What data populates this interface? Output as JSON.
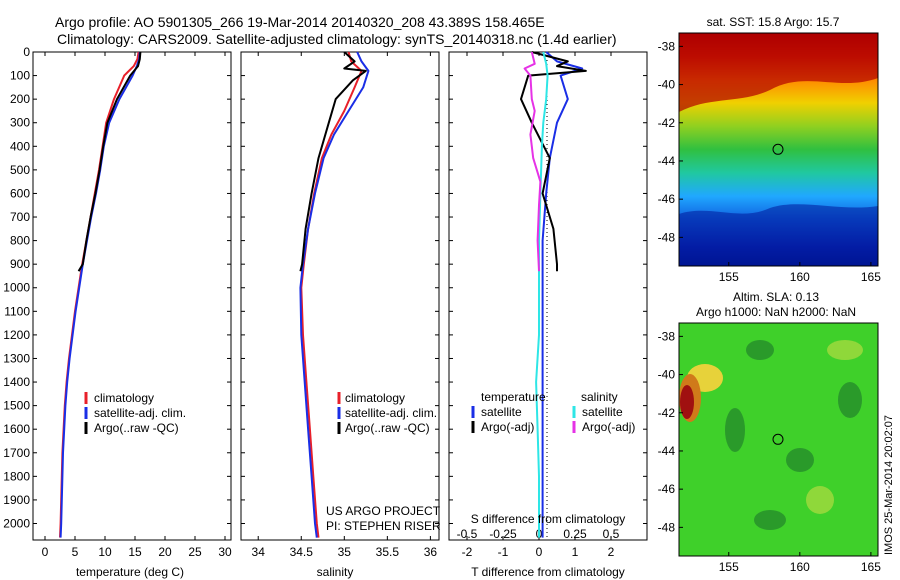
{
  "header": {
    "line1": "Argo profile: AO 5901305_266 19-Mar-2014 20140320_208 43.389S 158.465E",
    "line2": "Climatology: CARS2009. Satellite-adjusted climatology: synTS_20140318.nc (1.4d earlier)"
  },
  "colors": {
    "red": "#e8202a",
    "blue": "#1a2ee6",
    "black": "#000000",
    "cyan": "#2ee6e6",
    "magenta": "#e632e6"
  },
  "chart_data": [
    {
      "type": "line",
      "panel": "temperature",
      "xlabel": "temperature (deg C)",
      "xlim": [
        -2,
        31
      ],
      "xticks": [
        0,
        5,
        10,
        15,
        20,
        25,
        30
      ],
      "ylim": [
        0,
        2070
      ],
      "yticks": [
        0,
        100,
        200,
        300,
        400,
        500,
        600,
        700,
        800,
        900,
        1000,
        1100,
        1200,
        1300,
        1400,
        1500,
        1600,
        1700,
        1800,
        1900,
        2000
      ],
      "legend": [
        "climatology",
        "satellite-adj. clim.",
        "Argo(..raw -QC)"
      ],
      "series": [
        {
          "name": "climatology",
          "color": "red",
          "points": [
            [
              15.6,
              0
            ],
            [
              15.4,
              30
            ],
            [
              14.8,
              60
            ],
            [
              13.2,
              100
            ],
            [
              11.5,
              200
            ],
            [
              10.2,
              300
            ],
            [
              9.6,
              400
            ],
            [
              9.0,
              500
            ],
            [
              8.3,
              600
            ],
            [
              7.6,
              700
            ],
            [
              6.9,
              800
            ],
            [
              6.2,
              900
            ],
            [
              5.6,
              1000
            ],
            [
              5.0,
              1100
            ],
            [
              4.5,
              1200
            ],
            [
              4.0,
              1300
            ],
            [
              3.6,
              1400
            ],
            [
              3.3,
              1500
            ],
            [
              3.1,
              1600
            ],
            [
              2.9,
              1700
            ],
            [
              2.8,
              1800
            ],
            [
              2.7,
              1900
            ],
            [
              2.6,
              2000
            ],
            [
              2.5,
              2060
            ]
          ]
        },
        {
          "name": "satellite-adj. clim.",
          "color": "blue",
          "points": [
            [
              15.8,
              0
            ],
            [
              15.7,
              30
            ],
            [
              15.3,
              60
            ],
            [
              14.6,
              100
            ],
            [
              12.4,
              200
            ],
            [
              10.7,
              300
            ],
            [
              9.8,
              400
            ],
            [
              9.2,
              500
            ],
            [
              8.5,
              600
            ],
            [
              7.7,
              700
            ],
            [
              7.0,
              800
            ],
            [
              6.3,
              900
            ],
            [
              5.7,
              1000
            ],
            [
              5.1,
              1100
            ],
            [
              4.6,
              1200
            ],
            [
              4.1,
              1300
            ],
            [
              3.7,
              1400
            ],
            [
              3.4,
              1500
            ],
            [
              3.2,
              1600
            ],
            [
              3.0,
              1700
            ],
            [
              2.9,
              1800
            ],
            [
              2.8,
              1900
            ],
            [
              2.7,
              2000
            ],
            [
              2.6,
              2060
            ]
          ]
        },
        {
          "name": "Argo(..raw -QC)",
          "color": "black",
          "points": [
            [
              15.9,
              0
            ],
            [
              15.8,
              30
            ],
            [
              15.5,
              60
            ],
            [
              14.2,
              100
            ],
            [
              12.0,
              200
            ],
            [
              10.4,
              300
            ],
            [
              9.7,
              400
            ],
            [
              9.1,
              500
            ],
            [
              8.4,
              600
            ],
            [
              7.6,
              700
            ],
            [
              6.9,
              800
            ],
            [
              6.3,
              900
            ],
            [
              5.6,
              930
            ]
          ]
        }
      ]
    },
    {
      "type": "line",
      "panel": "salinity",
      "xlabel": "salinity",
      "xlim": [
        33.8,
        36.1
      ],
      "xticks": [
        34,
        34.5,
        35,
        35.5,
        36
      ],
      "ylim": [
        0,
        2070
      ],
      "legend": [
        "climatology",
        "satellite-adj. clim.",
        "Argo(..raw -QC)"
      ],
      "annotations": [
        "US ARGO PROJECT",
        "PI: STEPHEN RISER"
      ],
      "series": [
        {
          "name": "climatology",
          "color": "red",
          "points": [
            [
              35.05,
              0
            ],
            [
              35.08,
              40
            ],
            [
              35.2,
              80
            ],
            [
              35.12,
              150
            ],
            [
              35.0,
              250
            ],
            [
              34.85,
              350
            ],
            [
              34.74,
              450
            ],
            [
              34.65,
              600
            ],
            [
              34.58,
              750
            ],
            [
              34.53,
              900
            ],
            [
              34.5,
              1000
            ],
            [
              34.52,
              1200
            ],
            [
              34.56,
              1400
            ],
            [
              34.6,
              1600
            ],
            [
              34.64,
              1800
            ],
            [
              34.68,
              2000
            ],
            [
              34.7,
              2060
            ]
          ]
        },
        {
          "name": "satellite-adj. clim.",
          "color": "blue",
          "points": [
            [
              35.15,
              0
            ],
            [
              35.2,
              40
            ],
            [
              35.28,
              80
            ],
            [
              35.22,
              150
            ],
            [
              35.05,
              250
            ],
            [
              34.88,
              350
            ],
            [
              34.76,
              450
            ],
            [
              34.66,
              600
            ],
            [
              34.58,
              750
            ],
            [
              34.52,
              900
            ],
            [
              34.49,
              1000
            ],
            [
              34.5,
              1200
            ],
            [
              34.54,
              1400
            ],
            [
              34.58,
              1600
            ],
            [
              34.62,
              1800
            ],
            [
              34.66,
              2000
            ],
            [
              34.68,
              2060
            ]
          ]
        },
        {
          "name": "Argo(..raw -QC)",
          "color": "black",
          "points": [
            [
              35.0,
              0
            ],
            [
              35.12,
              40
            ],
            [
              35.0,
              70
            ],
            [
              35.25,
              80
            ],
            [
              35.1,
              120
            ],
            [
              34.9,
              200
            ],
            [
              34.82,
              300
            ],
            [
              34.7,
              450
            ],
            [
              34.62,
              600
            ],
            [
              34.55,
              750
            ],
            [
              34.51,
              900
            ],
            [
              34.49,
              930
            ]
          ]
        }
      ]
    },
    {
      "type": "line",
      "panel": "difference",
      "xlabel": "T difference from climatology",
      "xlim": [
        -2.5,
        3.0
      ],
      "xticks": [
        -2,
        -1,
        0,
        1,
        2
      ],
      "s_axis_label": "S difference from climatology",
      "s_ticks": [
        "-0.5",
        "-0.25",
        "0",
        "0.25",
        "0.5"
      ],
      "s_xlim": [
        -0.625,
        0.75
      ],
      "ylim": [
        0,
        2070
      ],
      "legend_temperature": {
        "title": "temperature",
        "items": [
          "satellite",
          "Argo(-adj)"
        ]
      },
      "legend_salinity": {
        "title": "salinity",
        "items": [
          "satellite",
          "Argo(-adj)"
        ]
      },
      "series": [
        {
          "name": "temperature satellite",
          "color": "blue",
          "points": [
            [
              0.2,
              0
            ],
            [
              0.5,
              40
            ],
            [
              1.2,
              70
            ],
            [
              0.6,
              100
            ],
            [
              0.8,
              200
            ],
            [
              0.5,
              300
            ],
            [
              0.3,
              450
            ],
            [
              0.2,
              600
            ],
            [
              0.1,
              800
            ],
            [
              0.1,
              1000
            ],
            [
              0.1,
              1200
            ],
            [
              0.1,
              1500
            ],
            [
              0.1,
              1800
            ],
            [
              0.1,
              2060
            ]
          ]
        },
        {
          "name": "temperature Argo(-adj)",
          "color": "black",
          "points": [
            [
              -0.2,
              0
            ],
            [
              0.8,
              40
            ],
            [
              0.5,
              60
            ],
            [
              1.3,
              80
            ],
            [
              -0.3,
              100
            ],
            [
              -0.5,
              200
            ],
            [
              -0.2,
              300
            ],
            [
              0.3,
              450
            ],
            [
              0.1,
              600
            ],
            [
              0.4,
              750
            ],
            [
              0.5,
              900
            ],
            [
              0.5,
              930
            ]
          ]
        },
        {
          "name": "salinity satellite",
          "color": "cyan",
          "points": [
            [
              0.03,
              0
            ],
            [
              0.05,
              50
            ],
            [
              0.06,
              100
            ],
            [
              0.05,
              200
            ],
            [
              0.03,
              300
            ],
            [
              0.02,
              400
            ],
            [
              0.01,
              600
            ],
            [
              0.0,
              800
            ],
            [
              0.0,
              1000
            ],
            [
              0.0,
              1200
            ],
            [
              -0.02,
              1400
            ],
            [
              -0.01,
              1600
            ],
            [
              0.0,
              1800
            ],
            [
              0.0,
              2060
            ]
          ]
        },
        {
          "name": "salinity Argo(-adj)",
          "color": "magenta",
          "points": [
            [
              -0.05,
              0
            ],
            [
              -0.03,
              50
            ],
            [
              -0.1,
              70
            ],
            [
              -0.06,
              100
            ],
            [
              -0.05,
              200
            ],
            [
              -0.03,
              250
            ],
            [
              -0.06,
              350
            ],
            [
              -0.04,
              450
            ],
            [
              0.01,
              550
            ],
            [
              0.0,
              650
            ],
            [
              -0.01,
              800
            ],
            [
              0.0,
              930
            ]
          ]
        }
      ]
    },
    {
      "type": "heatmap",
      "panel": "sst-map",
      "title": "sat. SST: 15.8 Argo: 15.7",
      "xticks": [
        155,
        160,
        165
      ],
      "yticks": [
        -38,
        -40,
        -42,
        -44,
        -46,
        -48
      ],
      "xlim": [
        151.5,
        165.5
      ],
      "ylim": [
        -49.5,
        -37.3
      ],
      "marker": [
        158.465,
        -43.389
      ]
    },
    {
      "type": "heatmap",
      "panel": "sla-map",
      "title": "Altim. SLA: 0.13",
      "subtitle": "Argo h1000: NaN h2000: NaN",
      "xticks": [
        155,
        160,
        165
      ],
      "yticks": [
        -38,
        -40,
        -42,
        -44,
        -46,
        -48
      ],
      "xlim": [
        151.5,
        165.5
      ],
      "ylim": [
        -49.5,
        -37.3
      ],
      "marker": [
        158.465,
        -43.389
      ],
      "side_note": "IMOS 25-Mar-2014 20:02:07"
    }
  ]
}
